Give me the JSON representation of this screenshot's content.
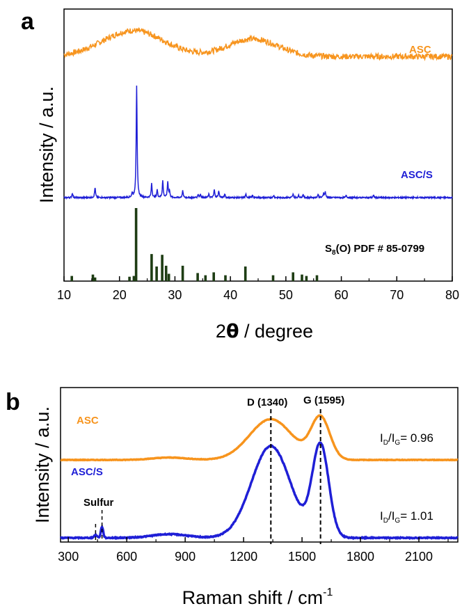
{
  "chart_data": [
    {
      "panel": "a",
      "type": "line",
      "xlabel_main": "2",
      "xlabel_theta": "θ",
      "xlabel_rest": " / degree",
      "ylabel": "Intensity / a.u.",
      "xlim": [
        10,
        80
      ],
      "xticks": [
        "10",
        "20",
        "30",
        "40",
        "50",
        "60",
        "70",
        "80"
      ],
      "series": [
        {
          "name": "ASC",
          "color": "#F7941D",
          "kind": "broad",
          "peaks": [
            {
              "x": 22.5,
              "height": 0.62,
              "width": 5.5
            },
            {
              "x": 44,
              "height": 0.42,
              "width": 4.5
            }
          ],
          "base": 0.18
        },
        {
          "name": "ASC/S",
          "color": "#1F1FD6",
          "kind": "sharp",
          "peaks": [
            {
              "x": 11.5,
              "h": 0.04
            },
            {
              "x": 15.6,
              "h": 0.09
            },
            {
              "x": 22.3,
              "h": 0.04
            },
            {
              "x": 23.1,
              "h": 1.0
            },
            {
              "x": 25.8,
              "h": 0.13
            },
            {
              "x": 26.8,
              "h": 0.07
            },
            {
              "x": 27.8,
              "h": 0.15
            },
            {
              "x": 28.7,
              "h": 0.14
            },
            {
              "x": 29.0,
              "h": 0.06
            },
            {
              "x": 31.4,
              "h": 0.06
            },
            {
              "x": 34.2,
              "h": 0.03
            },
            {
              "x": 34.6,
              "h": 0.03
            },
            {
              "x": 36.1,
              "h": 0.03
            },
            {
              "x": 37.1,
              "h": 0.07
            },
            {
              "x": 37.9,
              "h": 0.06
            },
            {
              "x": 39.0,
              "h": 0.03
            },
            {
              "x": 42.8,
              "h": 0.03
            },
            {
              "x": 44.0,
              "h": 0.02
            },
            {
              "x": 47.8,
              "h": 0.02
            },
            {
              "x": 51.3,
              "h": 0.03
            },
            {
              "x": 52.3,
              "h": 0.02
            },
            {
              "x": 53.1,
              "h": 0.03
            },
            {
              "x": 55.8,
              "h": 0.03
            },
            {
              "x": 56.8,
              "h": 0.04
            },
            {
              "x": 57.1,
              "h": 0.05
            },
            {
              "x": 60.9,
              "h": 0.02
            },
            {
              "x": 65.8,
              "h": 0.02
            }
          ]
        },
        {
          "name": "S8(O) PDF # 85-0799",
          "color": "#1E3D14",
          "kind": "sticks",
          "sticks": [
            {
              "x": 11.4,
              "h": 0.07
            },
            {
              "x": 15.2,
              "h": 0.09
            },
            {
              "x": 15.6,
              "h": 0.05
            },
            {
              "x": 21.8,
              "h": 0.06
            },
            {
              "x": 22.6,
              "h": 0.07
            },
            {
              "x": 23.0,
              "h": 1.0
            },
            {
              "x": 25.8,
              "h": 0.37
            },
            {
              "x": 26.7,
              "h": 0.2
            },
            {
              "x": 27.7,
              "h": 0.36
            },
            {
              "x": 28.4,
              "h": 0.21
            },
            {
              "x": 28.9,
              "h": 0.1
            },
            {
              "x": 31.4,
              "h": 0.21
            },
            {
              "x": 34.1,
              "h": 0.11
            },
            {
              "x": 35.5,
              "h": 0.08
            },
            {
              "x": 37.0,
              "h": 0.12
            },
            {
              "x": 39.1,
              "h": 0.08
            },
            {
              "x": 42.7,
              "h": 0.2
            },
            {
              "x": 47.7,
              "h": 0.08
            },
            {
              "x": 51.3,
              "h": 0.12
            },
            {
              "x": 52.9,
              "h": 0.09
            },
            {
              "x": 53.7,
              "h": 0.07
            },
            {
              "x": 55.6,
              "h": 0.08
            }
          ]
        }
      ],
      "labels": {
        "asc": "ASC",
        "ascs": "ASC/S",
        "pdf_main": "S",
        "pdf_sub": "8",
        "pdf_rest": "(O) PDF # 85-0799"
      }
    },
    {
      "panel": "b",
      "type": "line",
      "xlabel_main": "Raman shift / cm",
      "xlabel_sup": "-1",
      "ylabel": "Intensity / a.u.",
      "xlim": [
        260,
        2300
      ],
      "xticks": [
        300,
        600,
        900,
        1200,
        1500,
        1800,
        2100
      ],
      "series": [
        {
          "name": "ASC",
          "color": "#F7941D",
          "peaks": [
            {
              "x": 1340,
              "height": 0.86,
              "width": 110
            },
            {
              "x": 1595,
              "height": 0.88,
              "width": 48
            }
          ],
          "hump": {
            "x": 820,
            "height": 0.05,
            "width": 90
          },
          "base": 0.0
        },
        {
          "name": "ASC/S",
          "color": "#1F1FD6",
          "peaks": [
            {
              "x": 1340,
              "height": 1.0,
              "width": 100
            },
            {
              "x": 1595,
              "height": 1.0,
              "width": 42
            }
          ],
          "hump": {
            "x": 820,
            "height": 0.04,
            "width": 90
          },
          "sulfur": [
            {
              "x": 473,
              "height": 0.12,
              "width": 6
            },
            {
              "x": 440,
              "height": 0.03,
              "width": 8
            }
          ],
          "base": 0.0
        }
      ],
      "annotations": {
        "d_band": "D (1340)",
        "g_band": "G (1595)",
        "d_x": 1340,
        "g_x": 1595,
        "sulfur_label": "Sulfur",
        "sulfur_x1": 440,
        "sulfur_x2": 473,
        "asc": "ASC",
        "ascs": "ASC/S",
        "ratio_asc": {
          "i": "I",
          "d": "D",
          "slash": "/I",
          "g": "G",
          "val": "= 0.96"
        },
        "ratio_ascs": {
          "i": "I",
          "d": "D",
          "slash": "/I",
          "g": "G",
          "val": "= 1.01"
        }
      }
    }
  ],
  "panel_letters": {
    "a": "a",
    "b": "b"
  }
}
